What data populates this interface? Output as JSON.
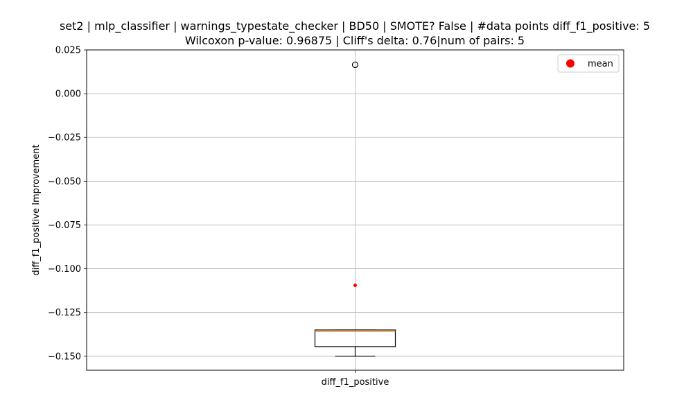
{
  "chart_data": {
    "type": "box",
    "title_line1": "set2 | mlp_classifier | warnings_typestate_checker | BD50 | SMOTE? False | #data points diff_f1_positive: 5",
    "title_line2": "Wilcoxon p-value: 0.96875 | Cliff's delta: 0.76|num of pairs: 5",
    "xlabel": "",
    "ylabel": "diff_f1_positive Improvement",
    "categories": [
      "diff_f1_positive"
    ],
    "ylim": [
      -0.158,
      0.025
    ],
    "yticks": [
      0.025,
      0.0,
      -0.025,
      -0.05,
      -0.075,
      -0.1,
      -0.125,
      -0.15
    ],
    "ytick_labels": [
      "0.025",
      "0.000",
      "−0.025",
      "−0.050",
      "−0.075",
      "−0.100",
      "−0.125",
      "−0.150"
    ],
    "grid": true,
    "legend": {
      "position": "top-right",
      "entries": [
        {
          "label": "mean",
          "color": "#ff0000"
        }
      ]
    },
    "box": {
      "whisker_low": -0.15,
      "q1": -0.1445,
      "median": -0.1358,
      "q3": -0.135,
      "whisker_high": -0.135,
      "outliers": [
        0.0165
      ],
      "mean": -0.1095
    },
    "colors": {
      "median": "#ff7f0e",
      "mean": "#ff0000",
      "grid": "#b0b0b0",
      "box": "#000000"
    }
  }
}
